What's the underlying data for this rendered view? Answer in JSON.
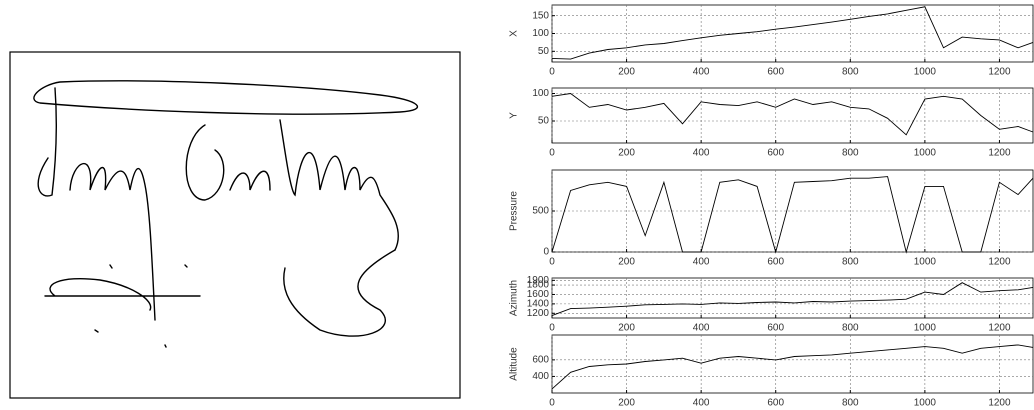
{
  "chart_data": [
    {
      "type": "line",
      "y_label": "X",
      "grid": true,
      "color": "#000000",
      "x": [
        0,
        50,
        100,
        150,
        200,
        250,
        300,
        350,
        400,
        450,
        500,
        550,
        600,
        650,
        700,
        750,
        800,
        850,
        900,
        950,
        1000,
        1050,
        1100,
        1150,
        1200,
        1250,
        1290
      ],
      "values": [
        30,
        28,
        45,
        55,
        60,
        68,
        72,
        80,
        88,
        95,
        100,
        105,
        112,
        118,
        125,
        132,
        140,
        148,
        155,
        165,
        175,
        60,
        90,
        85,
        82,
        60,
        75
      ],
      "xlim": [
        0,
        1290
      ],
      "xticks": [
        0,
        200,
        400,
        600,
        800,
        1000,
        1200
      ],
      "ylim": [
        20,
        180
      ],
      "yticks": [
        50,
        100,
        150
      ]
    },
    {
      "type": "line",
      "y_label": "Y",
      "grid": true,
      "color": "#000000",
      "x": [
        0,
        50,
        100,
        150,
        200,
        250,
        300,
        350,
        400,
        450,
        500,
        550,
        600,
        650,
        700,
        750,
        800,
        850,
        900,
        950,
        1000,
        1050,
        1100,
        1150,
        1200,
        1250,
        1290
      ],
      "values": [
        95,
        100,
        75,
        80,
        70,
        75,
        82,
        45,
        85,
        80,
        78,
        85,
        75,
        90,
        80,
        85,
        75,
        72,
        55,
        25,
        90,
        95,
        90,
        60,
        35,
        40,
        30
      ],
      "xlim": [
        0,
        1290
      ],
      "xticks": [
        0,
        200,
        400,
        600,
        800,
        1000,
        1200
      ],
      "ylim": [
        10,
        110
      ],
      "yticks": [
        50,
        100
      ]
    },
    {
      "type": "line",
      "y_label": "Pressure",
      "grid": true,
      "color": "#000000",
      "x": [
        0,
        50,
        100,
        150,
        200,
        250,
        300,
        350,
        400,
        450,
        500,
        550,
        600,
        650,
        700,
        750,
        800,
        850,
        900,
        950,
        1000,
        1050,
        1100,
        1150,
        1200,
        1250,
        1290
      ],
      "values": [
        0,
        750,
        820,
        850,
        800,
        200,
        850,
        0,
        0,
        850,
        880,
        800,
        0,
        850,
        860,
        870,
        900,
        900,
        920,
        0,
        800,
        800,
        0,
        0,
        850,
        700,
        900
      ],
      "xlim": [
        0,
        1290
      ],
      "xticks": [
        0,
        200,
        400,
        600,
        800,
        1000,
        1200
      ],
      "ylim": [
        0,
        1000
      ],
      "yticks": [
        0,
        500
      ]
    },
    {
      "type": "line",
      "y_label": "Azimuth",
      "grid": true,
      "color": "#000000",
      "x": [
        0,
        50,
        100,
        150,
        200,
        250,
        300,
        350,
        400,
        450,
        500,
        550,
        600,
        650,
        700,
        750,
        800,
        850,
        900,
        950,
        1000,
        1050,
        1100,
        1150,
        1200,
        1250,
        1290
      ],
      "values": [
        1150,
        1300,
        1310,
        1330,
        1350,
        1380,
        1390,
        1400,
        1390,
        1420,
        1410,
        1430,
        1440,
        1420,
        1450,
        1440,
        1460,
        1470,
        1480,
        1500,
        1650,
        1600,
        1850,
        1650,
        1680,
        1700,
        1750
      ],
      "xlim": [
        0,
        1290
      ],
      "xticks": [
        0,
        200,
        400,
        600,
        800,
        1000,
        1200
      ],
      "ylim": [
        1100,
        1950
      ],
      "yticks": [
        1200,
        1400,
        1600,
        1800,
        1900
      ]
    },
    {
      "type": "line",
      "y_label": "Altitude",
      "grid": true,
      "color": "#000000",
      "x": [
        0,
        50,
        100,
        150,
        200,
        250,
        300,
        350,
        400,
        450,
        500,
        550,
        600,
        650,
        700,
        750,
        800,
        850,
        900,
        950,
        1000,
        1050,
        1100,
        1150,
        1200,
        1250,
        1290
      ],
      "values": [
        250,
        450,
        520,
        540,
        550,
        580,
        600,
        620,
        560,
        620,
        640,
        620,
        600,
        640,
        650,
        660,
        680,
        700,
        720,
        740,
        760,
        740,
        680,
        740,
        760,
        780,
        750
      ],
      "xlim": [
        0,
        1290
      ],
      "xticks": [
        0,
        200,
        400,
        600,
        800,
        1000,
        1200
      ],
      "ylim": [
        200,
        900
      ],
      "yticks": [
        400,
        600
      ]
    }
  ]
}
